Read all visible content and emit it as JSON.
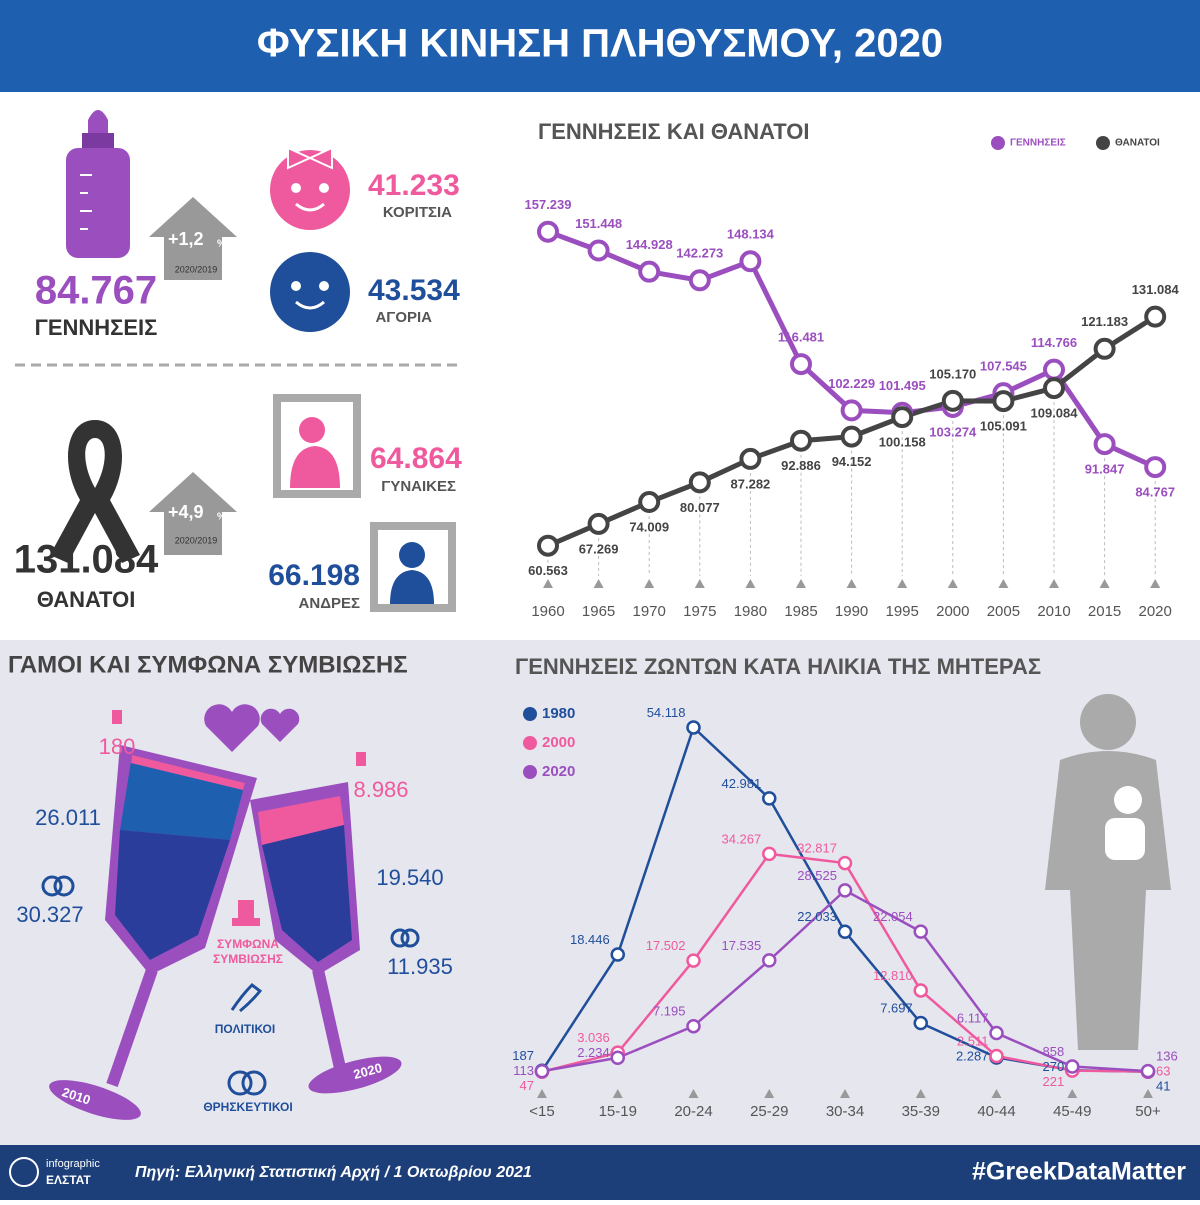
{
  "header": {
    "title": "ΦΥΣΙΚΗ ΚΙΝΗΣΗ ΠΛΗΘΥΣΜΟΥ, 2020"
  },
  "stats": {
    "births": {
      "value": "84.767",
      "label": "ΓΕΝΝΗΣΕΙΣ",
      "change": "+1,2",
      "change_unit": "%",
      "period": "2020/2019"
    },
    "girls": {
      "value": "41.233",
      "label": "ΚΟΡΙΤΣΙΑ"
    },
    "boys": {
      "value": "43.534",
      "label": "ΑΓΟΡΙΑ"
    },
    "deaths": {
      "value": "131.084",
      "label": "ΘΑΝΑΤΟΙ",
      "change": "+4,9",
      "change_unit": "%",
      "period": "2020/2019"
    },
    "women": {
      "value": "64.864",
      "label": "ΓΥΝΑΙΚΕΣ"
    },
    "men": {
      "value": "66.198",
      "label": "ΑΝΔΡΕΣ"
    }
  },
  "marriages": {
    "title": "ΓΑΜΟΙ ΚΑΙ ΣΥΜΦΩΝΑ ΣΥΜΒΙΩΣΗΣ",
    "years": [
      {
        "year": "2010",
        "cohabitation": "180",
        "civil": "26.011",
        "religious": "30.327"
      },
      {
        "year": "2020",
        "cohabitation": "8.986",
        "civil": "19.540",
        "religious": "11.935"
      }
    ],
    "legend": {
      "cohabitation": [
        "ΣΥΜΦΩΝΑ",
        "ΣΥΜΒΙΩΣΗΣ"
      ],
      "civil": "ΠΟΛΙΤΙΚΟΙ",
      "religious": "ΘΡΗΣΚΕΥΤΙΚΟΙ"
    }
  },
  "chart_data": [
    {
      "type": "line",
      "title": "ΓΕΝΝΗΣΕΙΣ ΚΑΙ ΘΑΝΑΤΟΙ",
      "legend": "top-right",
      "grid": true,
      "categories": [
        "1960",
        "1965",
        "1970",
        "1975",
        "1980",
        "1985",
        "1990",
        "1995",
        "2000",
        "2005",
        "2010",
        "2015",
        "2020"
      ],
      "ylim": [
        50000,
        167000
      ],
      "series": [
        {
          "name": "ΓΕΝΝΗΣΕΙΣ",
          "color": "#9b4fbf",
          "values": [
            157239,
            151448,
            144928,
            142273,
            148134,
            116481,
            102229,
            101495,
            103274,
            107545,
            114766,
            91847,
            84767
          ],
          "value_labels": [
            "157.239",
            "151.448",
            "144.928",
            "142.273",
            "148.134",
            "116.481",
            "102.229",
            "101.495",
            "103.274",
            "107.545",
            "114.766",
            "91.847",
            "84.767"
          ]
        },
        {
          "name": "ΘΑΝΑΤΟΙ",
          "color": "#444444",
          "values": [
            60563,
            67269,
            74009,
            80077,
            87282,
            92886,
            94152,
            100158,
            105170,
            105091,
            109084,
            121183,
            131084
          ],
          "value_labels": [
            "60.563",
            "67.269",
            "74.009",
            "80.077",
            "87.282",
            "92.886",
            "94.152",
            "100.158",
            "105.170",
            "105.091",
            "109.084",
            "121.183",
            "131.084"
          ]
        }
      ]
    },
    {
      "type": "line",
      "title": "ΓΕΝΝΗΣΕΙΣ ΖΩΝΤΩΝ ΚΑΤΑ ΗΛΙΚΙΑ ΤΗΣ ΜΗΤΕΡΑΣ",
      "legend": "top-left",
      "grid": false,
      "categories": [
        "<15",
        "15-19",
        "20-24",
        "25-29",
        "30-34",
        "35-39",
        "40-44",
        "45-49",
        "50+"
      ],
      "ylim": [
        0,
        60000
      ],
      "series": [
        {
          "name": "1980",
          "color": "#1f4e9b",
          "values": [
            187,
            18446,
            54118,
            42981,
            22033,
            7697,
            2287,
            270,
            41
          ],
          "value_labels": [
            "187",
            "18.446",
            "54.118",
            "42.981",
            "22.033",
            "7.697",
            "2.287",
            "270",
            "41"
          ]
        },
        {
          "name": "2000",
          "color": "#ef5a9e",
          "values": [
            47,
            3036,
            17502,
            34267,
            32817,
            12810,
            2511,
            221,
            63
          ],
          "value_labels": [
            "47",
            "3.036",
            "17.502",
            "34.267",
            "32.817",
            "12.810",
            "2.511",
            "221",
            "63"
          ]
        },
        {
          "name": "2020",
          "color": "#9b4fbf",
          "values": [
            113,
            2234,
            7195,
            17535,
            28525,
            22054,
            6117,
            858,
            136
          ],
          "value_labels": [
            "113",
            "2.234",
            "7.195",
            "17.535",
            "28.525",
            "22.054",
            "6.117",
            "858",
            "136"
          ]
        }
      ]
    }
  ],
  "footer": {
    "logo_top": "infographic",
    "logo_bottom": "ΕΛΣΤΑΤ",
    "source": "Πηγή: Ελληνική Στατιστική Αρχή  / 1 Οκτωβρίου 2021",
    "hashtag": "#GreekDataMatter"
  }
}
